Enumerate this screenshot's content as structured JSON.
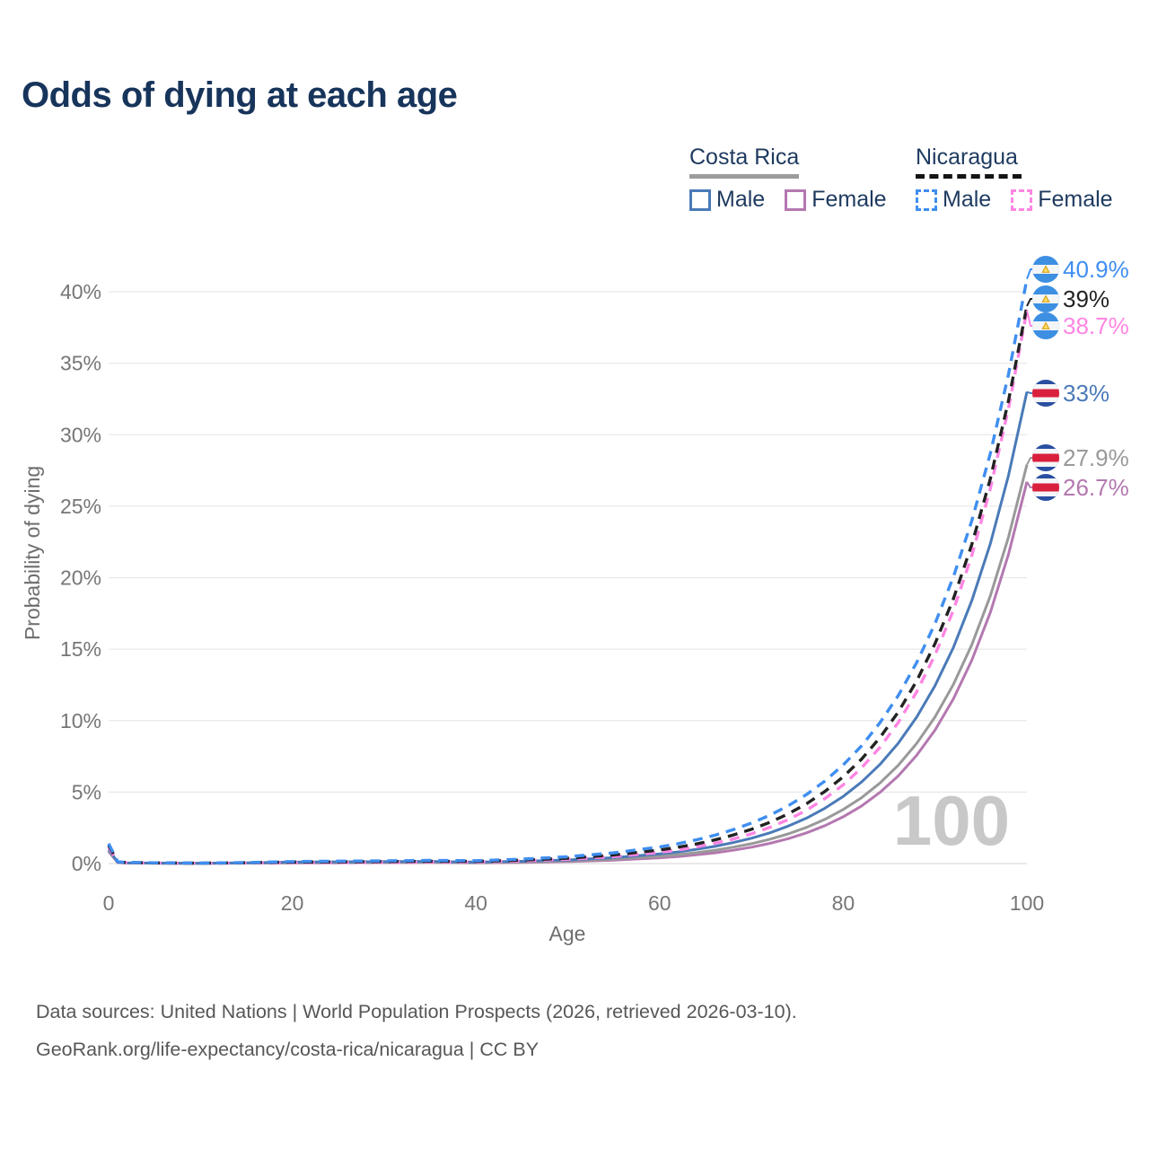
{
  "title": "Odds of dying at each age",
  "legend": {
    "groups": [
      {
        "id": "costa-rica",
        "label": "Costa Rica",
        "line_style": "solid",
        "items": [
          {
            "label": "Male",
            "color": "#4a7ab8"
          },
          {
            "label": "Female",
            "color": "#b478b0"
          }
        ]
      },
      {
        "id": "nicaragua",
        "label": "Nicaragua",
        "line_style": "dashed",
        "items": [
          {
            "label": "Male",
            "color": "#3f8ef0"
          },
          {
            "label": "Female",
            "color": "#ff85e3"
          }
        ]
      }
    ]
  },
  "footer": {
    "line1": "Data sources: United Nations | World Population Prospects (2026, retrieved 2026-03-10).",
    "line2": "GeoRank.org/life-expectancy/costa-rica/nicaragua | CC BY"
  },
  "chart_data": {
    "type": "line",
    "title": "Odds of dying at each age",
    "xlabel": "Age",
    "ylabel": "Probability of dying",
    "xlim": [
      0,
      100
    ],
    "ylim_pct": [
      0,
      40
    ],
    "xticks": [
      0,
      20,
      40,
      60,
      80,
      100
    ],
    "yticks_pct": [
      0,
      5,
      10,
      15,
      20,
      25,
      30,
      35,
      40
    ],
    "grid": "horizontal",
    "age_watermark": "100",
    "x": [
      0,
      1,
      2,
      5,
      10,
      15,
      20,
      25,
      30,
      35,
      40,
      45,
      50,
      55,
      60,
      62,
      64,
      66,
      68,
      70,
      72,
      74,
      76,
      78,
      80,
      82,
      84,
      86,
      88,
      90,
      92,
      94,
      96,
      98,
      100
    ],
    "series": [
      {
        "id": "cr-female",
        "country": "Costa Rica",
        "group": "Female",
        "style": "solid",
        "color": "#b478b0",
        "flag": "cr",
        "end_label": "26.7%",
        "end_value_pct": 26.7,
        "values": [
          0.85,
          0.07,
          0.04,
          0.025,
          0.015,
          0.03,
          0.04,
          0.05,
          0.06,
          0.08,
          0.05,
          0.08,
          0.14,
          0.24,
          0.4,
          0.49,
          0.61,
          0.75,
          0.93,
          1.14,
          1.41,
          1.74,
          2.15,
          2.65,
          3.27,
          4.03,
          4.98,
          6.14,
          7.57,
          9.34,
          11.53,
          14.22,
          17.54,
          21.64,
          26.7
        ]
      },
      {
        "id": "cr-total",
        "country": "Costa Rica",
        "group": "Both sexes",
        "style": "solid",
        "color": "#999999",
        "flag": "cr",
        "end_label": "27.9%",
        "end_value_pct": 27.9,
        "values": [
          0.93,
          0.075,
          0.045,
          0.028,
          0.018,
          0.04,
          0.07,
          0.085,
          0.095,
          0.115,
          0.07,
          0.11,
          0.19,
          0.31,
          0.51,
          0.62,
          0.76,
          0.93,
          1.14,
          1.39,
          1.7,
          2.07,
          2.53,
          3.09,
          3.78,
          4.61,
          5.63,
          6.88,
          8.4,
          10.26,
          12.54,
          15.31,
          18.7,
          22.84,
          27.9
        ]
      },
      {
        "id": "cr-male",
        "country": "Costa Rica",
        "group": "Male",
        "style": "solid",
        "color": "#4a7ab8",
        "flag": "cr",
        "end_label": "33%",
        "end_value_pct": 33.0,
        "values": [
          1.0,
          0.08,
          0.05,
          0.03,
          0.02,
          0.05,
          0.1,
          0.12,
          0.13,
          0.15,
          0.1,
          0.16,
          0.25,
          0.41,
          0.67,
          0.81,
          0.99,
          1.2,
          1.46,
          1.77,
          2.15,
          2.62,
          3.18,
          3.87,
          4.7,
          5.71,
          6.93,
          8.43,
          10.24,
          12.45,
          15.13,
          18.39,
          22.34,
          27.15,
          33.0
        ]
      },
      {
        "id": "ni-female",
        "country": "Nicaragua",
        "group": "Female",
        "style": "dashed",
        "color": "#ff85e3",
        "flag": "ni",
        "end_label": "38.7%",
        "end_value_pct": 38.7,
        "values": [
          1.15,
          0.1,
          0.06,
          0.04,
          0.025,
          0.04,
          0.06,
          0.07,
          0.085,
          0.1,
          0.11,
          0.18,
          0.3,
          0.48,
          0.78,
          0.95,
          1.16,
          1.41,
          1.71,
          2.08,
          2.53,
          3.07,
          3.73,
          4.54,
          5.51,
          6.7,
          8.13,
          9.88,
          12.01,
          14.6,
          17.74,
          21.56,
          26.2,
          31.84,
          38.7
        ]
      },
      {
        "id": "ni-total",
        "country": "Nicaragua",
        "group": "Both sexes",
        "style": "dashed",
        "color": "#222222",
        "flag": "ni",
        "end_label": "39%",
        "end_value_pct": 39.0,
        "values": [
          1.28,
          0.11,
          0.07,
          0.045,
          0.028,
          0.055,
          0.1,
          0.12,
          0.14,
          0.16,
          0.15,
          0.24,
          0.37,
          0.6,
          0.95,
          1.14,
          1.37,
          1.65,
          1.99,
          2.39,
          2.88,
          3.47,
          4.18,
          5.04,
          6.07,
          7.31,
          8.81,
          10.61,
          12.78,
          15.39,
          18.54,
          22.32,
          26.88,
          32.38,
          39.0
        ]
      },
      {
        "id": "ni-male",
        "country": "Nicaragua",
        "group": "Male",
        "style": "dashed",
        "color": "#3f8ef0",
        "flag": "ni",
        "end_label": "40.9%",
        "end_value_pct": 40.9,
        "values": [
          1.4,
          0.12,
          0.08,
          0.05,
          0.03,
          0.07,
          0.14,
          0.17,
          0.19,
          0.22,
          0.2,
          0.31,
          0.48,
          0.75,
          1.16,
          1.39,
          1.66,
          1.98,
          2.37,
          2.83,
          3.38,
          4.04,
          4.83,
          5.77,
          6.9,
          8.24,
          9.85,
          11.76,
          14.06,
          16.8,
          20.07,
          23.98,
          28.65,
          34.23,
          40.9
        ]
      }
    ]
  }
}
